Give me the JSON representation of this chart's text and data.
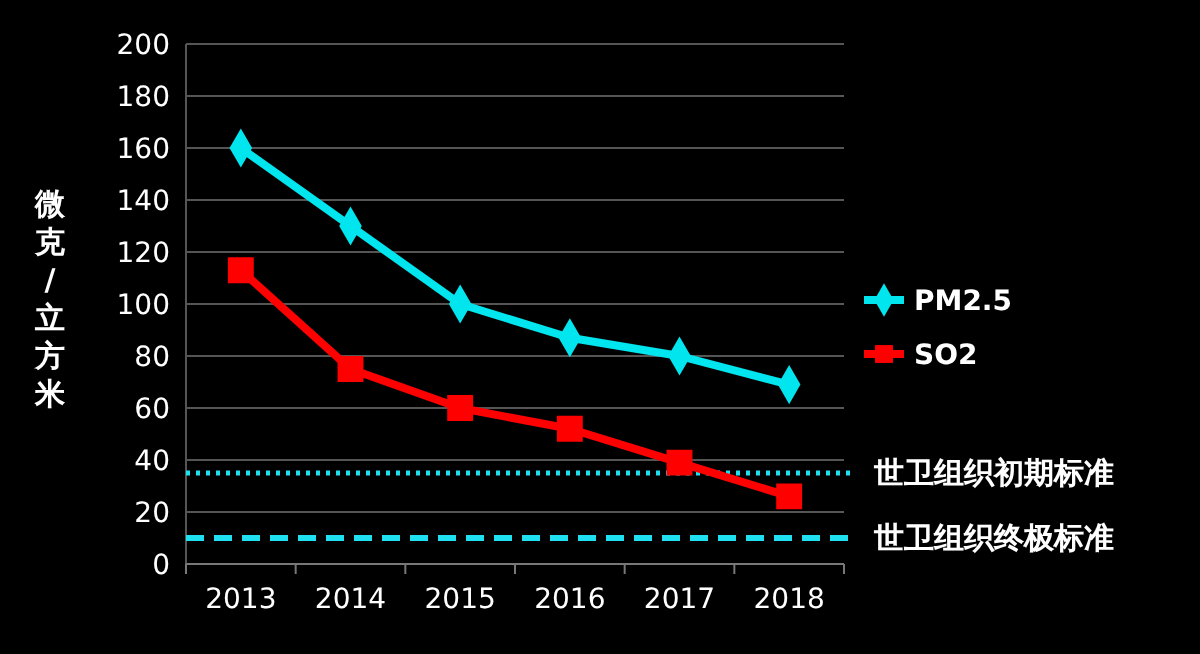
{
  "chart_data": {
    "type": "line",
    "ylabel": "微克/立方米",
    "categories": [
      "2013",
      "2014",
      "2015",
      "2016",
      "2017",
      "2018"
    ],
    "series": [
      {
        "name": "PM2.5",
        "color": "#00e5ee",
        "marker": "diamond",
        "values": [
          160,
          130,
          100,
          87,
          80,
          69
        ]
      },
      {
        "name": "SO2",
        "color": "#ff0000",
        "marker": "square",
        "values": [
          113,
          75,
          60,
          52,
          39,
          26
        ]
      }
    ],
    "ylim": [
      0,
      200
    ],
    "yticks": [
      0,
      20,
      40,
      60,
      80,
      100,
      120,
      140,
      160,
      180,
      200
    ],
    "grid": "y",
    "legend": "right",
    "ref_lines": [
      {
        "axis": "y",
        "value": 35,
        "label": "世卫组织初期标准",
        "color": "#1ee0f0",
        "line_style": "dotted"
      },
      {
        "axis": "y",
        "value": 10,
        "label": "世卫组织终极标准",
        "color": "#1ee0f0",
        "line_style": "dashed"
      }
    ]
  }
}
